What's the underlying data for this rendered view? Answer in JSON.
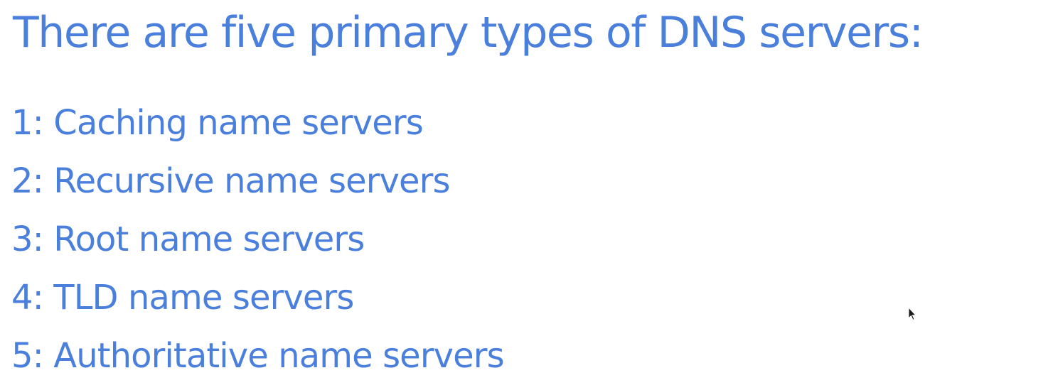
{
  "slide": {
    "title": "There are five primary types of DNS servers:",
    "items": [
      "1: Caching name servers",
      "2: Recursive name servers",
      "3: Root name servers",
      "4: TLD name servers",
      "5: Authoritative name servers"
    ]
  },
  "colors": {
    "text": "#4a7fdc",
    "background": "#ffffff"
  },
  "icons": {
    "cursor": "mouse-pointer-icon"
  }
}
